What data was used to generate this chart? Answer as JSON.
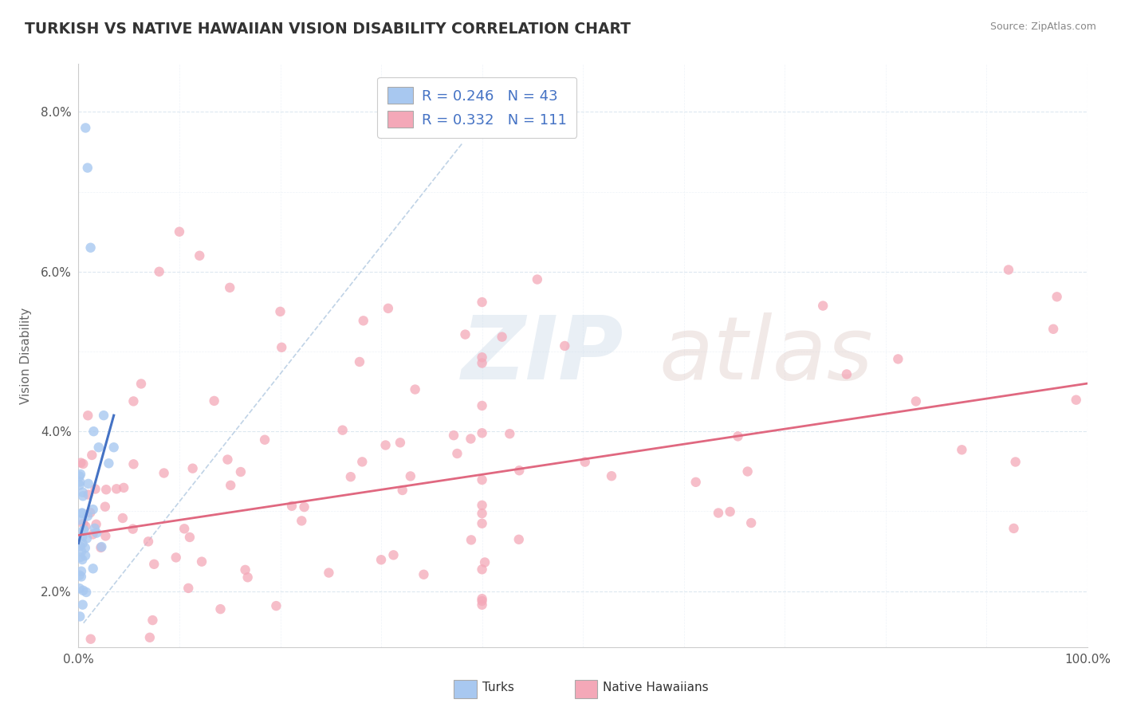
{
  "title": "TURKISH VS NATIVE HAWAIIAN VISION DISABILITY CORRELATION CHART",
  "source": "Source: ZipAtlas.com",
  "ylabel": "Vision Disability",
  "turks_R": 0.246,
  "turks_N": 43,
  "hawaiians_R": 0.332,
  "hawaiians_N": 111,
  "turks_color": "#a8c8f0",
  "hawaiians_color": "#f4a8b8",
  "turks_line_color": "#4472c4",
  "hawaiians_line_color": "#e06880",
  "background_color": "#ffffff",
  "grid_color": "#dde8f0",
  "grid_color_minor": "#eef3f8",
  "yticks": [
    0.02,
    0.04,
    0.06,
    0.08
  ],
  "ytick_labels": [
    "2.0%",
    "4.0%",
    "6.0%",
    "8.0%"
  ],
  "xlim": [
    0.0,
    1.0
  ],
  "ylim": [
    0.013,
    0.086
  ],
  "turks_line_x": [
    0.0,
    0.035
  ],
  "turks_line_y": [
    0.026,
    0.042
  ],
  "hawaiians_line_x": [
    0.0,
    1.0
  ],
  "hawaiians_line_y": [
    0.027,
    0.046
  ],
  "dash_line_x": [
    0.005,
    0.38
  ],
  "dash_line_y": [
    0.016,
    0.076
  ]
}
